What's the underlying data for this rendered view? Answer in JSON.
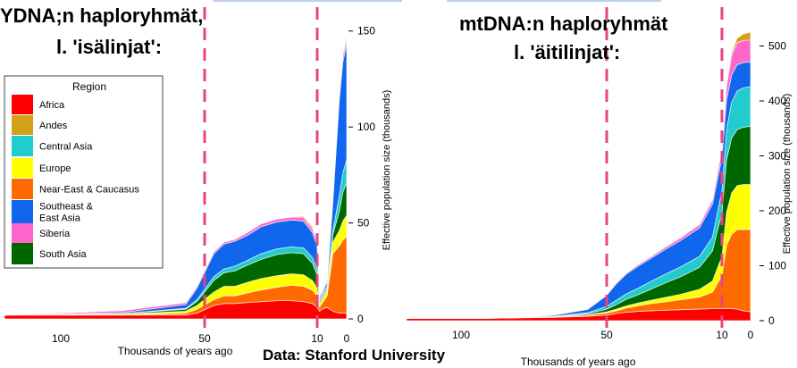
{
  "headers": {
    "ydna_line1": "YDNA;n haploryhmät,",
    "ydna_line2": "l. 'isälinjat':",
    "mtdna_line1": "mtDNA:n haploryhmät",
    "mtdna_line2": "l. 'äitilinjat':"
  },
  "credit": "Data: Stanford University",
  "legend": {
    "title": "Region",
    "items": [
      {
        "label": "Africa",
        "color": "#ff0000"
      },
      {
        "label": "Andes",
        "color": "#d4a017"
      },
      {
        "label": "Central Asia",
        "color": "#22cccc"
      },
      {
        "label": "Europe",
        "color": "#ffff00"
      },
      {
        "label": "Near-East & Caucasus",
        "color": "#ff6a00"
      },
      {
        "label": "Southeast &\nEast Asia",
        "color": "#1166ee"
      },
      {
        "label": "Siberia",
        "color": "#ff66cc"
      },
      {
        "label": "South Asia",
        "color": "#006600"
      }
    ]
  },
  "chart_data": [
    {
      "type": "area",
      "title": "YDNA;n haploryhmät, l. 'isälinjat':",
      "xlabel": "Thousands of years ago",
      "ylabel": "Effective population size (thousands)",
      "x_scale": "log-reversed",
      "x_ticks": [
        100,
        50,
        10,
        0
      ],
      "y_ticks": [
        0,
        50,
        100,
        150
      ],
      "ylim": [
        0,
        155
      ],
      "reference_lines": [
        50,
        10
      ],
      "stack_order": [
        "Africa",
        "Near-East & Caucasus",
        "Europe",
        "South Asia",
        "Central Asia",
        "Southeast & East Asia",
        "Siberia",
        "Andes"
      ],
      "x": [
        145,
        75,
        55,
        52,
        45,
        40,
        35,
        30,
        25,
        20,
        16,
        13,
        11,
        10,
        9,
        8,
        6,
        4,
        2,
        1,
        0
      ],
      "series": [
        {
          "name": "Africa",
          "values": [
            2,
            2,
            2,
            3,
            7,
            8,
            8,
            8.5,
            9,
            9.5,
            9.5,
            9,
            8,
            6,
            4,
            5,
            6,
            4,
            3,
            3,
            3
          ]
        },
        {
          "name": "Near-East & Caucasus",
          "values": [
            0,
            0,
            1,
            2,
            3,
            4,
            4,
            5,
            6,
            7,
            8,
            8,
            7,
            6,
            2,
            3,
            6,
            30,
            35,
            38,
            40
          ]
        },
        {
          "name": "Europe",
          "values": [
            0,
            0.5,
            1,
            2,
            4,
            5,
            5,
            5.5,
            6,
            6,
            6,
            6,
            5,
            4,
            2,
            2,
            3,
            6,
            8,
            10,
            11
          ]
        },
        {
          "name": "South Asia",
          "values": [
            0,
            0.3,
            1,
            2,
            6,
            7,
            8,
            9,
            10,
            11,
            11,
            11,
            9,
            7,
            1,
            1,
            1,
            4,
            10,
            15,
            17
          ]
        },
        {
          "name": "Central Asia",
          "values": [
            0,
            0,
            0.5,
            1,
            2,
            2,
            2.5,
            2.5,
            3,
            3,
            3,
            3,
            3,
            3,
            1,
            1,
            1,
            2,
            8,
            10,
            12
          ]
        },
        {
          "name": "Southeast & East Asia",
          "values": [
            0,
            0.5,
            2,
            6,
            12,
            13,
            13,
            13,
            14,
            14,
            14,
            14,
            13,
            12,
            1,
            1,
            2,
            15,
            50,
            58,
            60
          ]
        },
        {
          "name": "Siberia",
          "values": [
            0,
            1,
            1,
            1,
            1,
            1,
            1,
            1.5,
            1.5,
            1.5,
            1.5,
            2,
            2,
            2,
            1,
            1,
            1,
            1,
            2,
            3,
            3
          ]
        },
        {
          "name": "Andes",
          "values": [
            0,
            0,
            0,
            0,
            0,
            0,
            0,
            0,
            0,
            0,
            0,
            0.5,
            1,
            1,
            0.3,
            0,
            0,
            0,
            0.5,
            1,
            1
          ]
        }
      ]
    },
    {
      "type": "area",
      "title": "mtDNA:n haploryhmät l. 'äitilinjat':",
      "xlabel": "Thousands of years ago",
      "ylabel": "Effective population size (thousands)",
      "x_scale": "log-reversed",
      "x_ticks": [
        100,
        50,
        10,
        0
      ],
      "y_ticks": [
        0,
        100,
        200,
        300,
        400,
        500
      ],
      "ylim": [
        0,
        535
      ],
      "reference_lines": [
        50,
        10
      ],
      "stack_order": [
        "Africa",
        "Near-East & Caucasus",
        "Europe",
        "South Asia",
        "Central Asia",
        "Southeast & East Asia",
        "Siberia",
        "Andes"
      ],
      "x": [
        145,
        100,
        80,
        65,
        55,
        50,
        45,
        40,
        35,
        30,
        25,
        20,
        15,
        12,
        10,
        8,
        6,
        4,
        2,
        0
      ],
      "series": [
        {
          "name": "Africa",
          "values": [
            4,
            4,
            5,
            6,
            8,
            10,
            13,
            15,
            17,
            18,
            19,
            20,
            21,
            22,
            22,
            22,
            22,
            21,
            18,
            16
          ]
        },
        {
          "name": "Near-East & Caucasus",
          "values": [
            0,
            0,
            0,
            1,
            2,
            4,
            5,
            8,
            10,
            13,
            15,
            18,
            22,
            30,
            60,
            115,
            135,
            145,
            148,
            150
          ]
        },
        {
          "name": "Europe",
          "values": [
            0,
            0,
            0,
            0,
            0.5,
            2,
            3,
            4,
            5,
            6,
            8,
            10,
            14,
            20,
            35,
            60,
            75,
            80,
            82,
            82
          ]
        },
        {
          "name": "South Asia",
          "values": [
            0,
            0,
            0,
            0.5,
            2,
            5,
            8,
            12,
            15,
            20,
            26,
            32,
            40,
            55,
            80,
            95,
            100,
            102,
            104,
            106
          ]
        },
        {
          "name": "Central Asia",
          "values": [
            0,
            0,
            0,
            0.5,
            2,
            5,
            8,
            10,
            12,
            14,
            16,
            18,
            20,
            25,
            40,
            55,
            65,
            70,
            72,
            72
          ]
        },
        {
          "name": "Southeast & East Asia",
          "values": [
            0,
            0,
            0,
            2,
            6,
            20,
            30,
            36,
            40,
            42,
            45,
            48,
            52,
            60,
            60,
            55,
            50,
            48,
            46,
            45
          ]
        },
        {
          "name": "Siberia",
          "values": [
            0,
            0,
            0,
            0,
            0,
            1,
            2,
            2,
            3,
            3,
            4,
            5,
            6,
            8,
            15,
            25,
            35,
            40,
            40,
            40
          ]
        },
        {
          "name": "Andes",
          "values": [
            0,
            0,
            0,
            0,
            0,
            0,
            0,
            0,
            0,
            0,
            0,
            0,
            0,
            0,
            1,
            2,
            5,
            8,
            12,
            14
          ]
        }
      ]
    }
  ]
}
